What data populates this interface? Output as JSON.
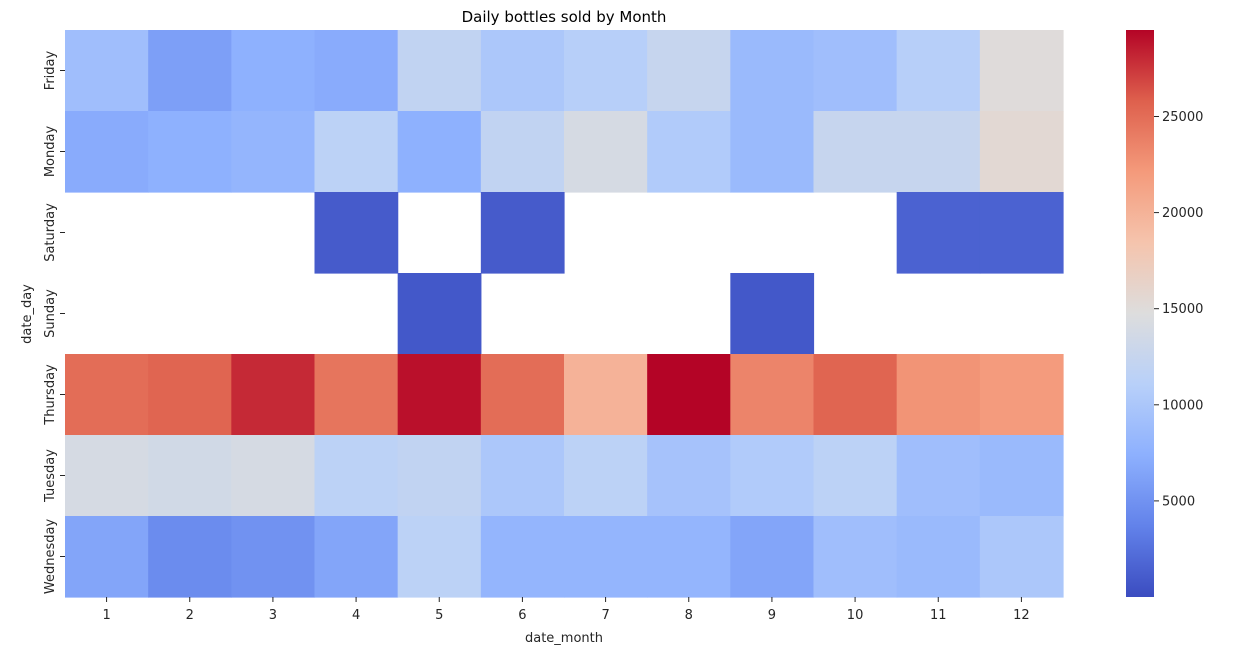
{
  "chart_data": {
    "type": "heatmap",
    "title": "Daily bottles sold by Month",
    "xlabel": "date_month",
    "ylabel": "date_day",
    "x_categories": [
      "1",
      "2",
      "3",
      "4",
      "5",
      "6",
      "7",
      "8",
      "9",
      "10",
      "11",
      "12"
    ],
    "y_categories": [
      "Friday",
      "Monday",
      "Saturday",
      "Sunday",
      "Thursday",
      "Tuesday",
      "Wednesday"
    ],
    "values": [
      [
        9000,
        6000,
        7500,
        7000,
        12000,
        10000,
        11000,
        12500,
        8500,
        9000,
        11000,
        15000
      ],
      [
        7000,
        7500,
        8000,
        11500,
        7500,
        12000,
        14000,
        10500,
        8500,
        12500,
        12500,
        15500
      ],
      [
        null,
        null,
        null,
        1000,
        null,
        1000,
        null,
        null,
        null,
        null,
        1500,
        1500
      ],
      [
        null,
        null,
        null,
        null,
        800,
        null,
        null,
        null,
        800,
        null,
        null,
        null
      ],
      [
        25000,
        25500,
        28000,
        24500,
        29000,
        25000,
        20000,
        29500,
        23500,
        25500,
        22500,
        22000
      ],
      [
        14000,
        13500,
        14000,
        11500,
        12000,
        10000,
        11500,
        9500,
        10500,
        11500,
        9000,
        8500
      ],
      [
        6500,
        4500,
        5000,
        6500,
        11500,
        8000,
        8000,
        8000,
        6500,
        9000,
        8500,
        10000
      ]
    ],
    "colorbar": {
      "min": 0,
      "max": 29500,
      "ticks": [
        5000,
        10000,
        15000,
        20000,
        25000
      ],
      "colormap": "coolwarm",
      "low_color": "#3b4cc0",
      "mid_color": "#dddddd",
      "high_color": "#b40426"
    },
    "missing_color": "#ffffff",
    "grid": false
  }
}
